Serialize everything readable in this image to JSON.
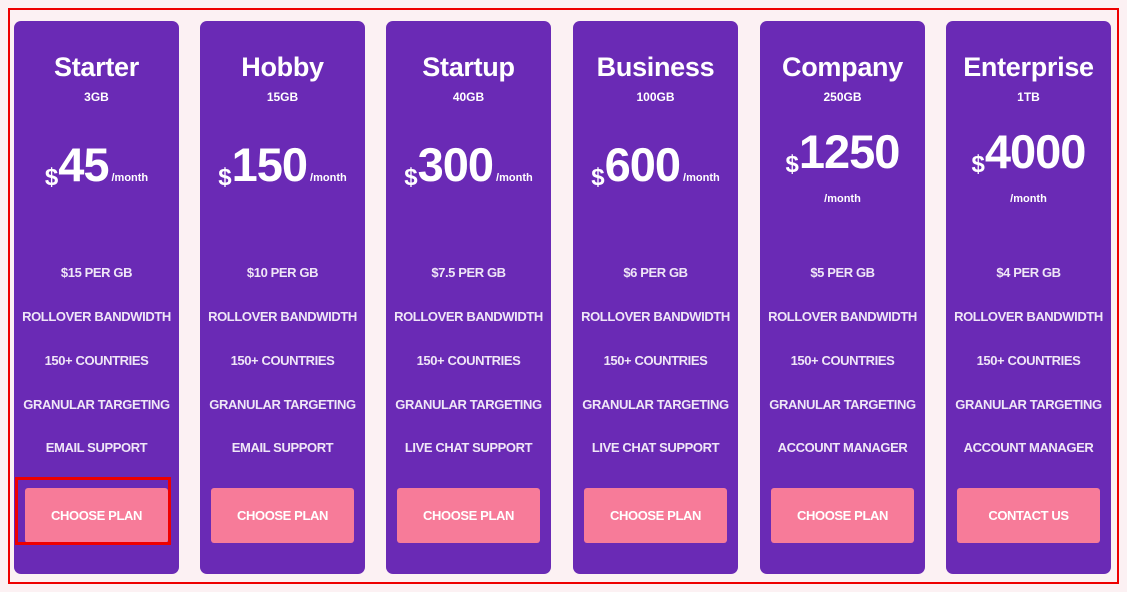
{
  "colors": {
    "card": "#6a2ab5",
    "button": "#f77b99",
    "background": "#fcf1f3",
    "highlight": "#ee0000"
  },
  "plans": [
    {
      "name": "Starter",
      "storage": "3GB",
      "currency": "$",
      "price": "45",
      "period": "/month",
      "features": [
        "$15 PER GB",
        "ROLLOVER BANDWIDTH",
        "150+ COUNTRIES",
        "GRANULAR TARGETING",
        "EMAIL SUPPORT"
      ],
      "button": "CHOOSE PLAN"
    },
    {
      "name": "Hobby",
      "storage": "15GB",
      "currency": "$",
      "price": "150",
      "period": "/month",
      "features": [
        "$10 PER GB",
        "ROLLOVER BANDWIDTH",
        "150+ COUNTRIES",
        "GRANULAR TARGETING",
        "EMAIL SUPPORT"
      ],
      "button": "CHOOSE PLAN"
    },
    {
      "name": "Startup",
      "storage": "40GB",
      "currency": "$",
      "price": "300",
      "period": "/month",
      "features": [
        "$7.5 PER GB",
        "ROLLOVER BANDWIDTH",
        "150+ COUNTRIES",
        "GRANULAR TARGETING",
        "LIVE CHAT SUPPORT"
      ],
      "button": "CHOOSE PLAN"
    },
    {
      "name": "Business",
      "storage": "100GB",
      "currency": "$",
      "price": "600",
      "period": "/month",
      "features": [
        "$6 PER GB",
        "ROLLOVER BANDWIDTH",
        "150+ COUNTRIES",
        "GRANULAR TARGETING",
        "LIVE CHAT SUPPORT"
      ],
      "button": "CHOOSE PLAN"
    },
    {
      "name": "Company",
      "storage": "250GB",
      "currency": "$",
      "price": "1250",
      "period": "/month",
      "features": [
        "$5 PER GB",
        "ROLLOVER BANDWIDTH",
        "150+ COUNTRIES",
        "GRANULAR TARGETING",
        "ACCOUNT MANAGER"
      ],
      "button": "CHOOSE PLAN"
    },
    {
      "name": "Enterprise",
      "storage": "1TB",
      "currency": "$",
      "price": "4000",
      "period": "/month",
      "features": [
        "$4 PER GB",
        "ROLLOVER BANDWIDTH",
        "150+ COUNTRIES",
        "GRANULAR TARGETING",
        "ACCOUNT MANAGER"
      ],
      "button": "CONTACT US"
    }
  ]
}
